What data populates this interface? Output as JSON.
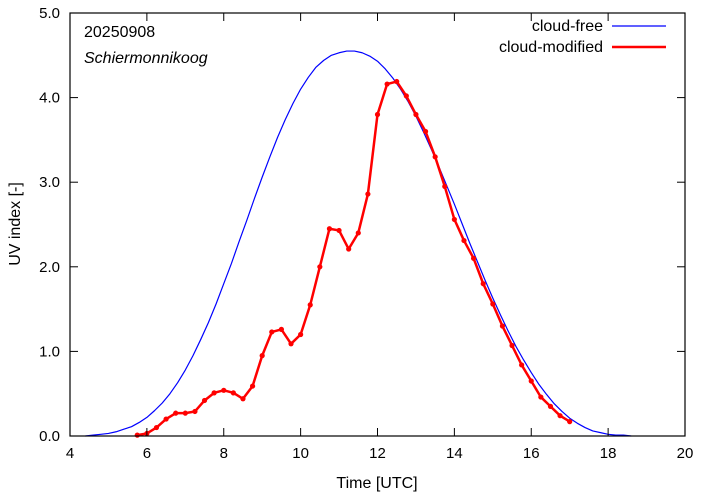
{
  "chart_data": {
    "type": "line",
    "annotations": {
      "date": "20250908",
      "location": "Schiermonnikoog"
    },
    "xlabel": "Time  [UTC]",
    "ylabel": "UV index  [-]",
    "xlim": [
      4,
      20
    ],
    "ylim": [
      0,
      5
    ],
    "xticks": [
      4,
      6,
      8,
      10,
      12,
      14,
      16,
      18,
      20
    ],
    "yticks": [
      0,
      1,
      2,
      3,
      4,
      5
    ],
    "xtick_labels": [
      "4",
      "6",
      "8",
      "10",
      "12",
      "14",
      "16",
      "18",
      "20"
    ],
    "ytick_labels": [
      "0.0",
      "1.0",
      "2.0",
      "3.0",
      "4.0",
      "5.0"
    ],
    "legend_position": "top-right",
    "grid": false,
    "series": [
      {
        "name": "cloud-free",
        "color": "#0000ff",
        "markers": false,
        "x": [
          4.4,
          4.6,
          4.8,
          5.0,
          5.2,
          5.4,
          5.6,
          5.8,
          6.0,
          6.2,
          6.4,
          6.6,
          6.8,
          7.0,
          7.2,
          7.4,
          7.6,
          7.8,
          8.0,
          8.2,
          8.4,
          8.6,
          8.8,
          9.0,
          9.2,
          9.4,
          9.6,
          9.8,
          10.0,
          10.2,
          10.4,
          10.6,
          10.8,
          11.0,
          11.2,
          11.4,
          11.6,
          11.8,
          12.0,
          12.2,
          12.4,
          12.6,
          12.8,
          13.0,
          13.2,
          13.4,
          13.6,
          13.8,
          14.0,
          14.2,
          14.4,
          14.6,
          14.8,
          15.0,
          15.2,
          15.4,
          15.6,
          15.8,
          16.0,
          16.2,
          16.4,
          16.6,
          16.8,
          17.0,
          17.2,
          17.4,
          17.6,
          17.8,
          18.0,
          18.2,
          18.4,
          18.6
        ],
        "y": [
          0.0,
          0.01,
          0.02,
          0.03,
          0.05,
          0.08,
          0.11,
          0.16,
          0.22,
          0.3,
          0.39,
          0.5,
          0.63,
          0.78,
          0.95,
          1.14,
          1.34,
          1.56,
          1.8,
          2.04,
          2.3,
          2.55,
          2.81,
          3.06,
          3.3,
          3.53,
          3.74,
          3.93,
          4.1,
          4.24,
          4.36,
          4.44,
          4.5,
          4.53,
          4.55,
          4.55,
          4.53,
          4.49,
          4.43,
          4.34,
          4.23,
          4.1,
          3.95,
          3.78,
          3.59,
          3.39,
          3.18,
          2.96,
          2.74,
          2.51,
          2.28,
          2.06,
          1.84,
          1.63,
          1.43,
          1.24,
          1.06,
          0.9,
          0.75,
          0.61,
          0.49,
          0.38,
          0.29,
          0.21,
          0.15,
          0.1,
          0.06,
          0.04,
          0.02,
          0.01,
          0.01,
          0.0
        ]
      },
      {
        "name": "cloud-modified",
        "color": "#ff0000",
        "markers": true,
        "x": [
          5.75,
          6.0,
          6.25,
          6.5,
          6.75,
          7.0,
          7.25,
          7.5,
          7.75,
          8.0,
          8.25,
          8.5,
          8.75,
          9.0,
          9.25,
          9.5,
          9.75,
          10.0,
          10.25,
          10.5,
          10.75,
          11.0,
          11.25,
          11.5,
          11.75,
          12.0,
          12.25,
          12.5,
          12.75,
          13.0,
          13.25,
          13.5,
          13.75,
          14.0,
          14.25,
          14.5,
          14.75,
          15.0,
          15.25,
          15.5,
          15.75,
          16.0,
          16.25,
          16.5,
          16.75,
          17.0
        ],
        "y": [
          0.01,
          0.03,
          0.1,
          0.2,
          0.27,
          0.27,
          0.29,
          0.42,
          0.51,
          0.54,
          0.51,
          0.44,
          0.59,
          0.95,
          1.23,
          1.26,
          1.09,
          1.2,
          1.55,
          2.0,
          2.45,
          2.43,
          2.21,
          2.4,
          2.86,
          3.8,
          4.16,
          4.19,
          4.02,
          3.8,
          3.6,
          3.3,
          2.95,
          2.56,
          2.31,
          2.1,
          1.8,
          1.56,
          1.3,
          1.07,
          0.84,
          0.65,
          0.46,
          0.35,
          0.24,
          0.17
        ]
      }
    ]
  }
}
